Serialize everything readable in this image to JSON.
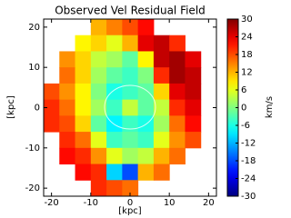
{
  "chart_data": {
    "type": "heatmap",
    "title": "Observed Vel Residual Field",
    "xlabel": "[kpc]",
    "ylabel": "[kpc]",
    "colorbar_label": "km/s",
    "colormap": "jet",
    "x": [
      -20,
      -16,
      -12,
      -8,
      -4,
      0,
      4,
      8,
      12,
      16,
      20
    ],
    "y": [
      20,
      16,
      12,
      8,
      4,
      0,
      -4,
      -8,
      -12,
      -16,
      -20
    ],
    "values": [
      [
        null,
        null,
        null,
        12,
        15,
        18,
        22,
        null,
        null,
        null,
        null
      ],
      [
        null,
        null,
        8,
        10,
        6,
        12,
        24,
        26,
        20,
        null,
        null
      ],
      [
        null,
        14,
        10,
        4,
        2,
        -2,
        8,
        26,
        28,
        24,
        null
      ],
      [
        null,
        16,
        10,
        2,
        -2,
        -4,
        0,
        20,
        28,
        26,
        null
      ],
      [
        18,
        14,
        8,
        0,
        -6,
        -4,
        -2,
        10,
        24,
        26,
        null
      ],
      [
        20,
        16,
        8,
        2,
        -4,
        4,
        -2,
        4,
        20,
        24,
        null
      ],
      [
        20,
        18,
        10,
        -2,
        -8,
        -4,
        -6,
        2,
        16,
        22,
        null
      ],
      [
        null,
        20,
        16,
        6,
        -4,
        -2,
        -4,
        6,
        14,
        18,
        null
      ],
      [
        null,
        22,
        20,
        14,
        6,
        2,
        4,
        12,
        16,
        null,
        null
      ],
      [
        null,
        null,
        22,
        20,
        -10,
        -18,
        12,
        16,
        null,
        null,
        null
      ],
      [
        null,
        null,
        null,
        20,
        18,
        16,
        null,
        null,
        null,
        null,
        null
      ]
    ],
    "xlim": [
      -22,
      22
    ],
    "ylim": [
      -22,
      22
    ],
    "xticks": [
      -20,
      -10,
      0,
      10,
      20
    ],
    "yticks": [
      -20,
      -10,
      0,
      10,
      20
    ],
    "clim": [
      -30,
      30
    ],
    "cticks": [
      -30,
      -24,
      -18,
      -12,
      -6,
      0,
      6,
      12,
      18,
      24,
      30
    ]
  }
}
